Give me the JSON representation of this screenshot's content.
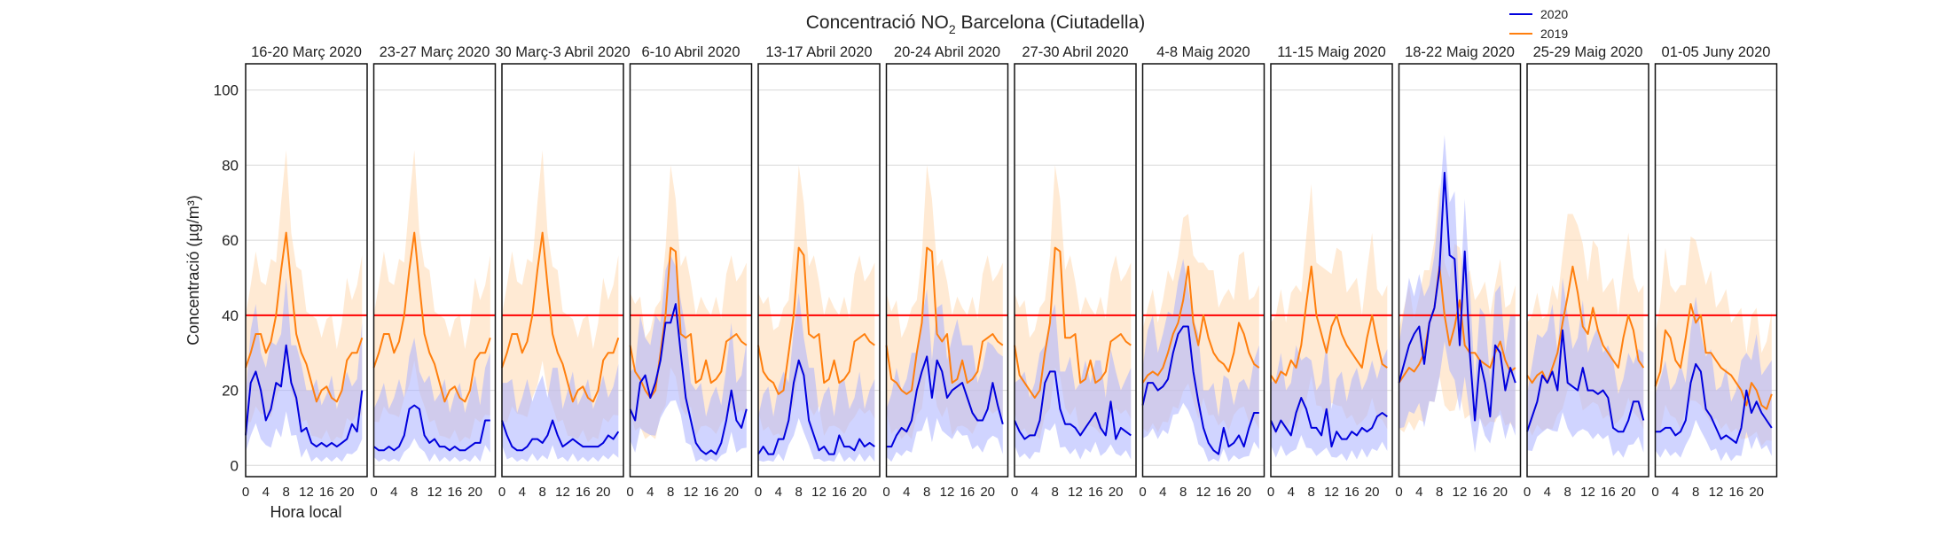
{
  "chart_data": {
    "type": "line",
    "title_prefix": "Concentració NO",
    "title_sub": "2",
    "title_suffix": " Barcelona (Ciutadella)",
    "ylabel": "Concentració (µg/m³)",
    "xlabel": "Hora local",
    "xlim": [
      0,
      24
    ],
    "ylim": [
      -3,
      107
    ],
    "yticks": [
      0,
      20,
      40,
      60,
      80,
      100
    ],
    "xticks": [
      0,
      4,
      8,
      12,
      16,
      20
    ],
    "limit_value": 40,
    "grid": true,
    "legend": {
      "placement": "top-right",
      "entries": [
        {
          "name": "2020",
          "color": "#0000dd"
        },
        {
          "name": "2019",
          "color": "#ff7f0e"
        }
      ]
    },
    "colors": {
      "line_2020": "#0000dd",
      "band_2020": "#aab0ff",
      "line_2019": "#ff7f0e",
      "band_2019": "#ffd8b0",
      "limit": "#ff0000"
    },
    "panels": [
      {
        "title": "16-20 Març 2020",
        "v2020": [
          8,
          22,
          25,
          20,
          12,
          15,
          22,
          21,
          32,
          22,
          18,
          9,
          10,
          6,
          5,
          6,
          5,
          6,
          5,
          6,
          7,
          11,
          9,
          20
        ],
        "v2019": [
          26,
          30,
          35,
          35,
          30,
          33,
          40,
          52,
          62,
          48,
          35,
          30,
          27,
          22,
          17,
          20,
          21,
          18,
          17,
          20,
          28,
          30,
          30,
          34
        ]
      },
      {
        "title": "23-27 Març 2020",
        "v2020": [
          5,
          4,
          4,
          5,
          4,
          5,
          8,
          15,
          16,
          15,
          8,
          6,
          7,
          5,
          5,
          4,
          5,
          4,
          4,
          5,
          6,
          6,
          12,
          12
        ],
        "v2019": [
          26,
          30,
          35,
          35,
          30,
          33,
          40,
          52,
          62,
          48,
          35,
          30,
          27,
          22,
          17,
          20,
          21,
          18,
          17,
          20,
          28,
          30,
          30,
          34
        ]
      },
      {
        "title": "30 Març-3 Abril 2020",
        "v2020": [
          12,
          8,
          5,
          4,
          4,
          5,
          7,
          7,
          6,
          8,
          12,
          8,
          5,
          6,
          7,
          6,
          5,
          5,
          5,
          5,
          6,
          8,
          7,
          9
        ],
        "v2019": [
          26,
          30,
          35,
          35,
          30,
          33,
          40,
          52,
          62,
          48,
          35,
          30,
          27,
          22,
          17,
          20,
          21,
          18,
          17,
          20,
          28,
          30,
          30,
          34
        ]
      },
      {
        "title": "6-10 Abril 2020",
        "v2020": [
          15,
          12,
          22,
          24,
          18,
          22,
          28,
          38,
          38,
          43,
          30,
          18,
          12,
          6,
          4,
          3,
          4,
          3,
          6,
          12,
          20,
          12,
          10,
          15
        ],
        "v2019": [
          32,
          25,
          23,
          20,
          18,
          20,
          30,
          40,
          58,
          57,
          35,
          34,
          35,
          22,
          23,
          28,
          22,
          23,
          25,
          33,
          34,
          35,
          33,
          32
        ]
      },
      {
        "title": "13-17 Abril 2020",
        "v2020": [
          3,
          5,
          3,
          3,
          7,
          7,
          12,
          22,
          28,
          24,
          12,
          8,
          4,
          5,
          3,
          3,
          8,
          5,
          5,
          4,
          7,
          5,
          6,
          5
        ],
        "v2019": [
          32,
          25,
          23,
          22,
          19,
          20,
          30,
          40,
          58,
          56,
          35,
          34,
          35,
          22,
          23,
          28,
          22,
          23,
          25,
          33,
          34,
          35,
          33,
          32
        ]
      },
      {
        "title": "20-24 Abril 2020",
        "v2020": [
          5,
          5,
          8,
          10,
          9,
          12,
          20,
          25,
          29,
          18,
          28,
          25,
          18,
          20,
          21,
          22,
          18,
          14,
          12,
          12,
          15,
          22,
          16,
          11
        ],
        "v2019": [
          32,
          23,
          22,
          20,
          19,
          20,
          30,
          38,
          58,
          57,
          35,
          33,
          35,
          22,
          23,
          28,
          22,
          23,
          25,
          33,
          34,
          35,
          33,
          32
        ]
      },
      {
        "title": "27-30 Abril 2020",
        "v2020": [
          12,
          9,
          7,
          8,
          8,
          12,
          22,
          25,
          25,
          15,
          11,
          11,
          10,
          8,
          10,
          12,
          14,
          10,
          8,
          17,
          7,
          10,
          9,
          8
        ],
        "v2019": [
          32,
          24,
          22,
          20,
          18,
          20,
          30,
          38,
          58,
          57,
          34,
          34,
          35,
          22,
          23,
          28,
          22,
          23,
          25,
          33,
          34,
          35,
          33,
          32
        ]
      },
      {
        "title": "4-8 Maig 2020",
        "v2020": [
          16,
          22,
          22,
          20,
          21,
          23,
          30,
          35,
          37,
          37,
          25,
          17,
          10,
          6,
          4,
          3,
          10,
          5,
          6,
          8,
          5,
          10,
          14,
          14
        ],
        "v2019": [
          22,
          24,
          25,
          24,
          26,
          30,
          35,
          38,
          44,
          53,
          38,
          32,
          40,
          34,
          30,
          28,
          27,
          25,
          30,
          38,
          35,
          30,
          27,
          26
        ]
      },
      {
        "title": "11-15 Maig 2020",
        "v2020": [
          12,
          9,
          12,
          10,
          8,
          14,
          18,
          15,
          10,
          10,
          8,
          15,
          5,
          9,
          7,
          7,
          9,
          8,
          10,
          9,
          10,
          13,
          14,
          13
        ],
        "v2019": [
          24,
          22,
          25,
          24,
          28,
          26,
          32,
          43,
          53,
          40,
          35,
          30,
          37,
          40,
          35,
          32,
          30,
          28,
          26,
          34,
          40,
          33,
          27,
          26
        ]
      },
      {
        "title": "18-22 Maig 2020",
        "v2020": [
          22,
          27,
          32,
          35,
          37,
          27,
          38,
          42,
          52,
          78,
          56,
          55,
          32,
          57,
          30,
          12,
          28,
          22,
          13,
          32,
          30,
          20,
          26,
          22
        ],
        "v2019": [
          22,
          24,
          26,
          25,
          27,
          30,
          38,
          42,
          53,
          40,
          32,
          37,
          44,
          32,
          30,
          30,
          28,
          27,
          26,
          30,
          33,
          28,
          25,
          26
        ]
      },
      {
        "title": "25-29 Maig 2020",
        "v2020": [
          9,
          13,
          17,
          24,
          22,
          25,
          20,
          36,
          22,
          21,
          20,
          26,
          20,
          20,
          19,
          20,
          18,
          10,
          9,
          9,
          12,
          17,
          17,
          12
        ],
        "v2019": [
          24,
          22,
          24,
          25,
          22,
          26,
          30,
          38,
          45,
          53,
          46,
          37,
          35,
          42,
          36,
          32,
          30,
          28,
          26,
          34,
          40,
          36,
          28,
          26
        ]
      },
      {
        "title": "01-05 Juny 2020",
        "v2020": [
          9,
          9,
          10,
          10,
          8,
          9,
          12,
          22,
          27,
          25,
          15,
          13,
          10,
          7,
          8,
          7,
          6,
          10,
          20,
          14,
          17,
          14,
          12,
          10
        ],
        "v2019": [
          21,
          25,
          36,
          34,
          28,
          26,
          34,
          43,
          38,
          40,
          30,
          30,
          28,
          26,
          25,
          24,
          22,
          20,
          16,
          22,
          20,
          16,
          15,
          19
        ]
      }
    ]
  }
}
